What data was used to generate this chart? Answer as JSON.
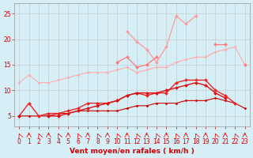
{
  "xlabel": "Vent moyen/en rafales ( km/h )",
  "background_color": "#d6eef5",
  "grid_color": "#bbbbbb",
  "x": [
    0,
    1,
    2,
    3,
    4,
    5,
    6,
    7,
    8,
    9,
    10,
    11,
    12,
    13,
    14,
    15,
    16,
    17,
    18,
    19,
    20,
    21,
    22,
    23
  ],
  "series": [
    {
      "name": "pale_line1",
      "color": "#ffaaaa",
      "y": [
        11.5,
        13.0,
        11.5,
        11.5,
        12.0,
        12.5,
        13.0,
        13.5,
        13.5,
        13.5,
        14.0,
        14.5,
        13.5,
        14.0,
        14.5,
        14.5,
        15.5,
        16.0,
        16.5,
        16.5,
        17.5,
        18.0,
        18.5,
        15.0
      ],
      "marker": "D",
      "markersize": 1.5,
      "linewidth": 0.8,
      "zorder": 2
    },
    {
      "name": "pale_line2_spiky",
      "color": "#ff9999",
      "y": [
        null,
        null,
        null,
        null,
        null,
        null,
        null,
        null,
        null,
        null,
        null,
        21.5,
        19.5,
        18.0,
        15.5,
        18.5,
        24.5,
        23.0,
        24.5,
        null,
        null,
        null,
        null,
        null
      ],
      "marker": "D",
      "markersize": 2,
      "linewidth": 0.9,
      "zorder": 3
    },
    {
      "name": "medium_line",
      "color": "#ff7777",
      "y": [
        null,
        null,
        null,
        null,
        null,
        null,
        null,
        null,
        null,
        null,
        15.5,
        16.5,
        14.5,
        15.0,
        16.5,
        null,
        null,
        null,
        null,
        null,
        19.0,
        19.0,
        null,
        15.0
      ],
      "marker": "D",
      "markersize": 2,
      "linewidth": 0.9,
      "zorder": 4
    },
    {
      "name": "dark_line1",
      "color": "#ee2222",
      "y": [
        5.0,
        7.5,
        5.0,
        5.5,
        5.5,
        6.0,
        6.5,
        7.5,
        7.5,
        7.5,
        8.0,
        9.0,
        9.5,
        9.0,
        9.5,
        9.5,
        11.5,
        12.0,
        12.0,
        12.0,
        10.0,
        9.0,
        7.5,
        null
      ],
      "marker": "D",
      "markersize": 2,
      "linewidth": 1.0,
      "zorder": 6
    },
    {
      "name": "dark_flat_line",
      "color": "#cc0000",
      "y": [
        5.0,
        5.0,
        5.0,
        5.0,
        5.5,
        5.5,
        6.0,
        6.0,
        6.0,
        6.0,
        6.0,
        6.5,
        7.0,
        7.0,
        7.5,
        7.5,
        7.5,
        8.0,
        8.0,
        8.0,
        8.5,
        8.0,
        7.5,
        6.5
      ],
      "marker": "D",
      "markersize": 1.5,
      "linewidth": 0.8,
      "zorder": 5
    },
    {
      "name": "dark_line2",
      "color": "#dd1111",
      "y": [
        5.0,
        null,
        null,
        5.0,
        5.0,
        5.5,
        6.0,
        6.5,
        7.0,
        7.5,
        8.0,
        9.0,
        9.5,
        9.5,
        9.5,
        10.0,
        10.5,
        11.0,
        11.5,
        11.0,
        9.5,
        8.5,
        null,
        null
      ],
      "marker": "D",
      "markersize": 2,
      "linewidth": 1.0,
      "zorder": 7
    }
  ],
  "ylim": [
    3,
    27
  ],
  "yticks": [
    5,
    10,
    15,
    20,
    25
  ],
  "xticks": [
    0,
    1,
    2,
    3,
    4,
    5,
    6,
    7,
    8,
    9,
    10,
    11,
    12,
    13,
    14,
    15,
    16,
    17,
    18,
    19,
    20,
    21,
    22,
    23
  ],
  "arrow_color": "#dd2222",
  "tick_color": "#cc0000",
  "label_fontsize": 5.5,
  "xlabel_fontsize": 6.5
}
